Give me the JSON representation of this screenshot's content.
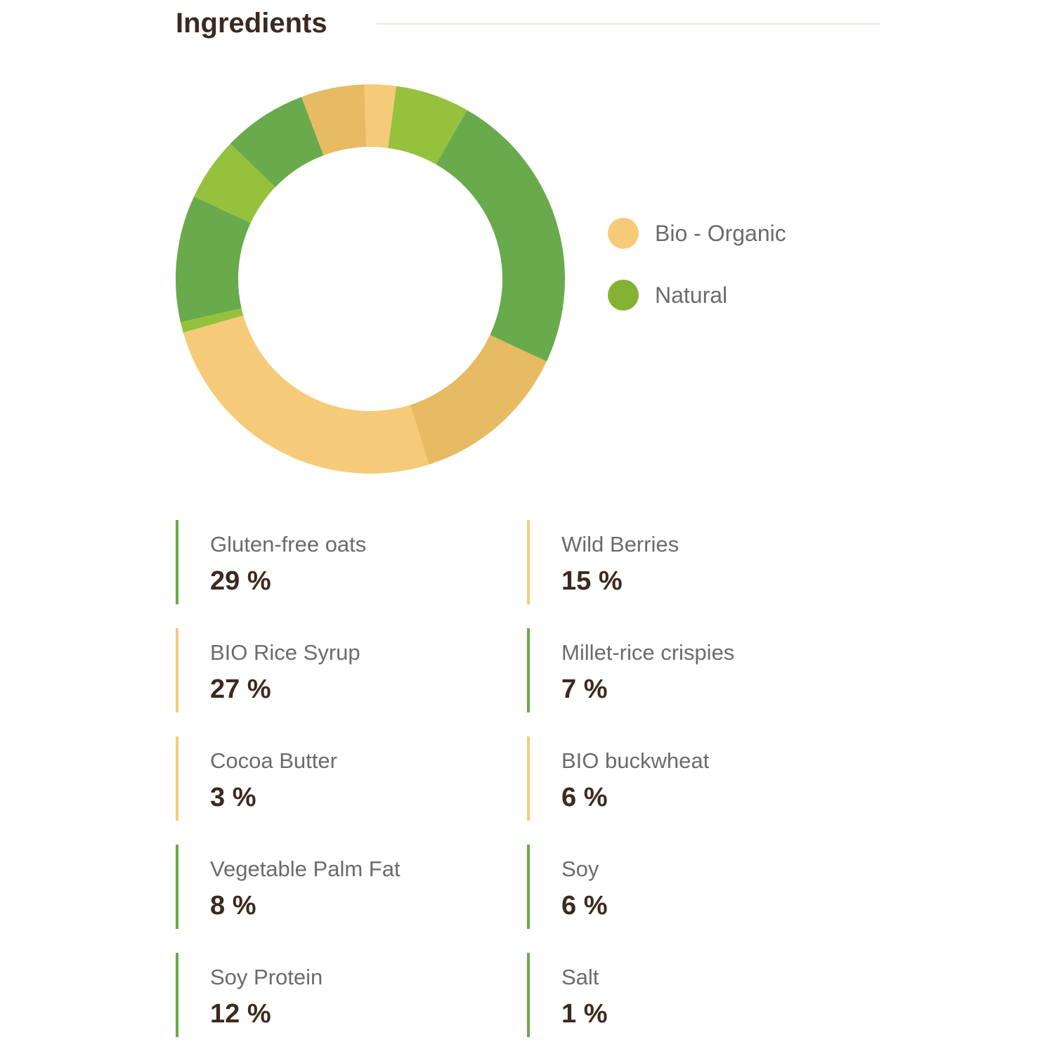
{
  "header": {
    "title": "Ingredients"
  },
  "colors": {
    "organic_light": "#f5cb7a",
    "organic_dark": "#e6bb63",
    "natural_dark": "#69aa4c",
    "natural_light": "#95c13d",
    "legend_natural": "#86b234",
    "text_dark": "#3b2a21",
    "text_muted": "#6b6b6b"
  },
  "legend": [
    {
      "label": "Bio - Organic",
      "color": "#f5cb7a"
    },
    {
      "label": "Natural",
      "color": "#86b234"
    }
  ],
  "ingredients": [
    {
      "name": "Gluten-free oats",
      "value": "29 %",
      "category": "natural"
    },
    {
      "name": "Wild Berries",
      "value": "15 %",
      "category": "organic"
    },
    {
      "name": "BIO Rice Syrup",
      "value": "27 %",
      "category": "organic"
    },
    {
      "name": "Millet-rice crispies",
      "value": "7 %",
      "category": "natural"
    },
    {
      "name": "Cocoa Butter",
      "value": "3 %",
      "category": "organic"
    },
    {
      "name": "BIO buckwheat",
      "value": "6 %",
      "category": "organic"
    },
    {
      "name": "Vegetable Palm Fat",
      "value": "8 %",
      "category": "natural"
    },
    {
      "name": "Soy",
      "value": "6 %",
      "category": "natural"
    },
    {
      "name": "Soy Protein",
      "value": "12 %",
      "category": "natural"
    },
    {
      "name": "Salt",
      "value": "1 %",
      "category": "natural"
    }
  ],
  "chart_data": {
    "type": "pie",
    "donut": true,
    "legend_position": "right",
    "slices": [
      {
        "value": 29,
        "color": "#f5cb7a"
      },
      {
        "value": 15,
        "color": "#e6bb63"
      },
      {
        "value": 27,
        "color": "#69aa4c"
      },
      {
        "value": 7,
        "color": "#95c13d"
      },
      {
        "value": 3,
        "color": "#f5cb7a"
      },
      {
        "value": 6,
        "color": "#e6bb63"
      },
      {
        "value": 8,
        "color": "#69aa4c"
      },
      {
        "value": 6,
        "color": "#95c13d"
      },
      {
        "value": 12,
        "color": "#69aa4c"
      },
      {
        "value": 1,
        "color": "#95c13d"
      }
    ]
  }
}
